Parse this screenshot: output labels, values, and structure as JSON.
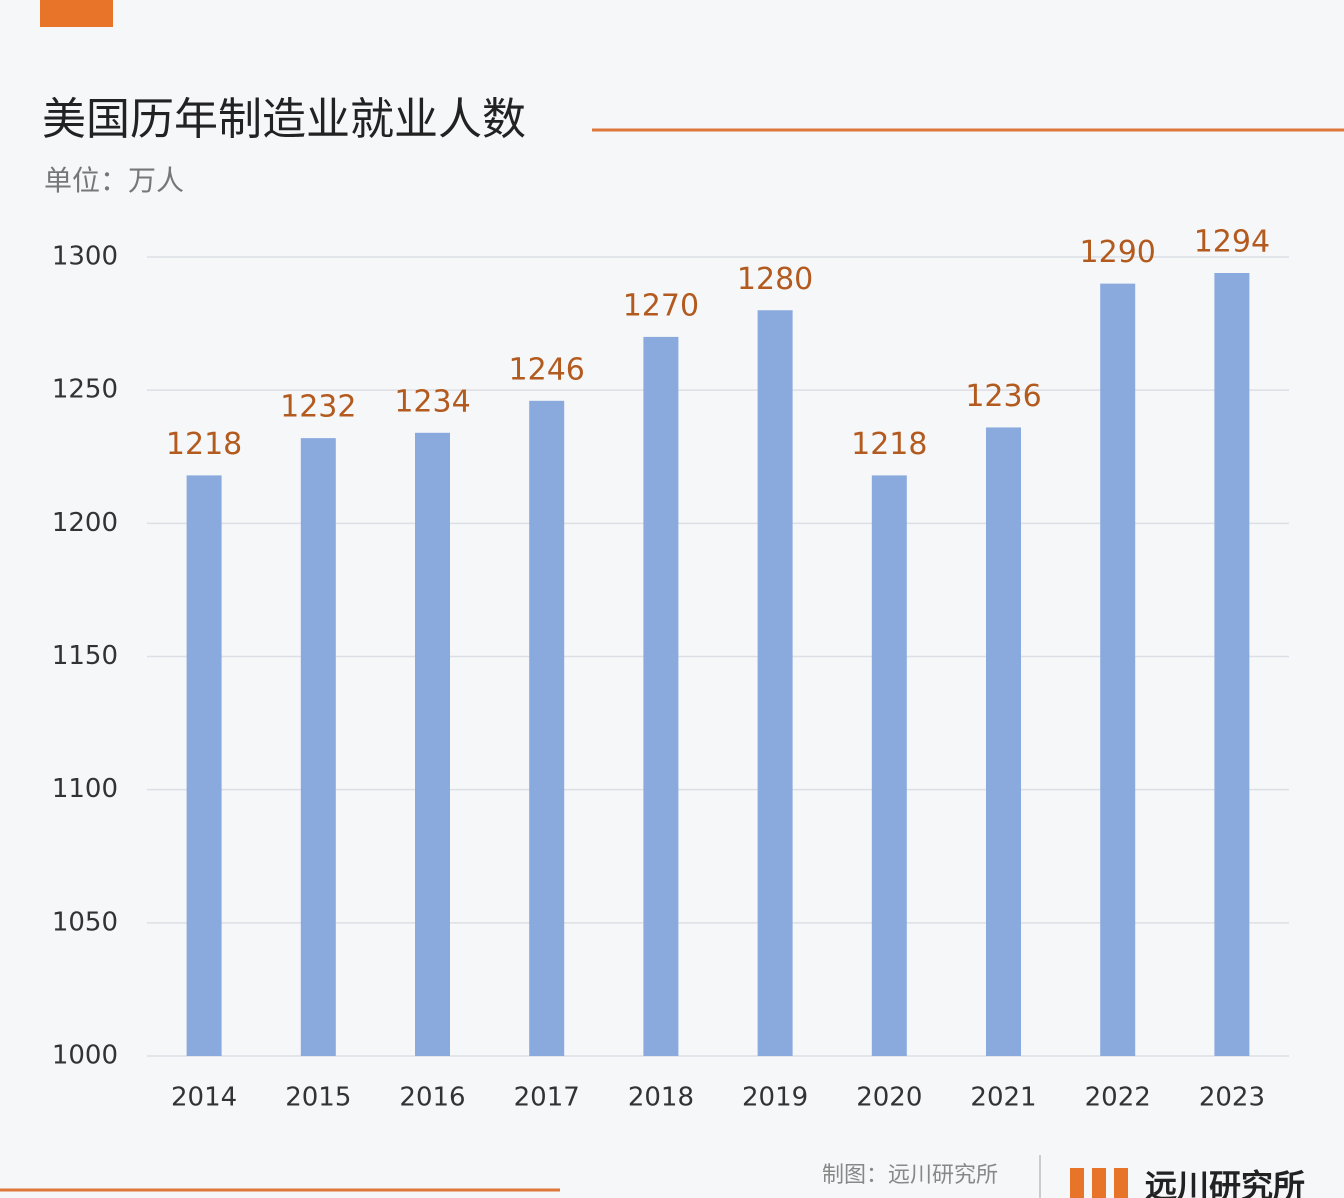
{
  "chart_data": {
    "type": "bar",
    "title": "美国历年制造业就业人数",
    "subtitle": "单位：万人",
    "categories": [
      "2014",
      "2015",
      "2016",
      "2017",
      "2018",
      "2019",
      "2020",
      "2021",
      "2022",
      "2023"
    ],
    "values": [
      1218,
      1232,
      1234,
      1246,
      1270,
      1280,
      1218,
      1236,
      1290,
      1294
    ],
    "color": "#8aaade",
    "label_color": "#b35a1f",
    "ylim": [
      1000,
      1300
    ],
    "yticks": [
      1000,
      1050,
      1100,
      1150,
      1200,
      1250,
      1300
    ],
    "grid": true,
    "source": "制图：远川研究所",
    "logo": "远川研究所"
  }
}
